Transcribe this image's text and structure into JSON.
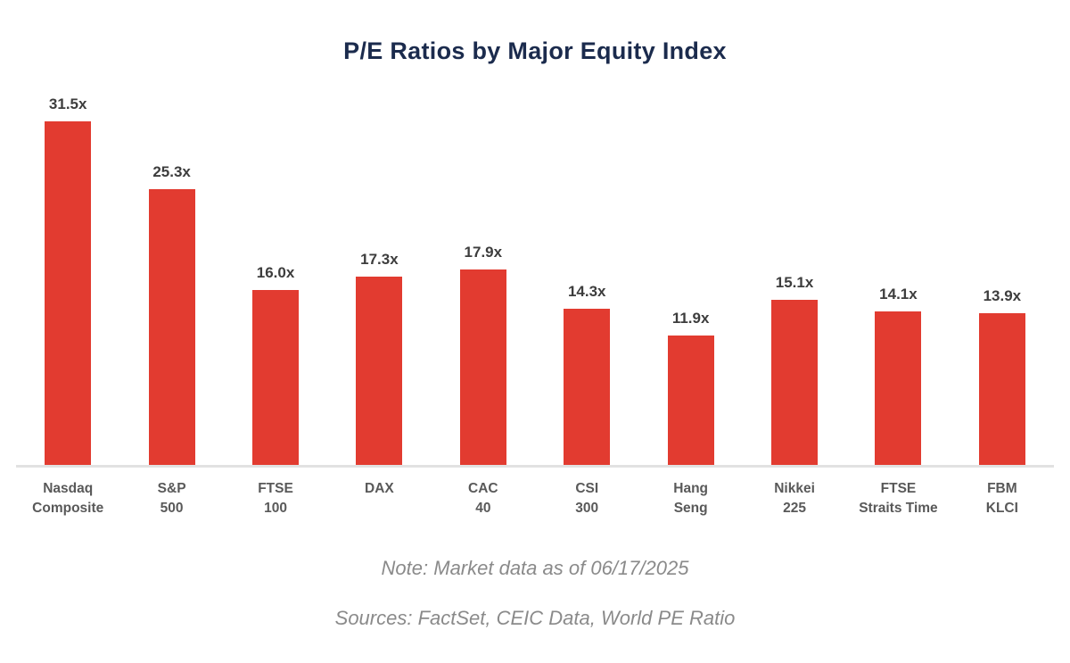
{
  "chart_data": {
    "type": "bar",
    "title": "P/E Ratios by Major Equity Index",
    "categories": [
      "Nasdaq Composite",
      "S&P 500",
      "FTSE 100",
      "DAX",
      "CAC 40",
      "CSI 300",
      "Hang Seng",
      "Nikkei 225",
      "FTSE Straits Time",
      "FBM KLCI"
    ],
    "category_lines": [
      [
        "Nasdaq",
        "Composite"
      ],
      [
        "S&P",
        "500"
      ],
      [
        "FTSE",
        "100"
      ],
      [
        "DAX"
      ],
      [
        "CAC",
        "40"
      ],
      [
        "CSI",
        "300"
      ],
      [
        "Hang",
        "Seng"
      ],
      [
        "Nikkei",
        "225"
      ],
      [
        "FTSE",
        "Straits Time"
      ],
      [
        "FBM",
        "KLCI"
      ]
    ],
    "values": [
      31.5,
      25.3,
      16.0,
      17.3,
      17.9,
      14.3,
      11.9,
      15.1,
      14.1,
      13.9
    ],
    "value_labels": [
      "31.5x",
      "25.3x",
      "16.0x",
      "17.3x",
      "17.9x",
      "14.3x",
      "11.9x",
      "15.1x",
      "14.1x",
      "13.9x"
    ],
    "xlabel": "",
    "ylabel": "",
    "ylim": [
      0,
      31.5
    ],
    "grid": false,
    "legend": false,
    "y_axis_visible": false,
    "bar_color": "#e23b30"
  },
  "notes": {
    "note": "Note: Market data as of 06/17/2025",
    "sources": "Sources: FactSet, CEIC Data, World PE Ratio"
  },
  "colors": {
    "background": "#ffffff",
    "title": "#1b2b4d",
    "bar_color": "#e23b30",
    "value_label": "#3d3d3d",
    "category_label": "#595959",
    "axis_line": "#e2e2e2",
    "note_text": "#8a8a8a"
  }
}
